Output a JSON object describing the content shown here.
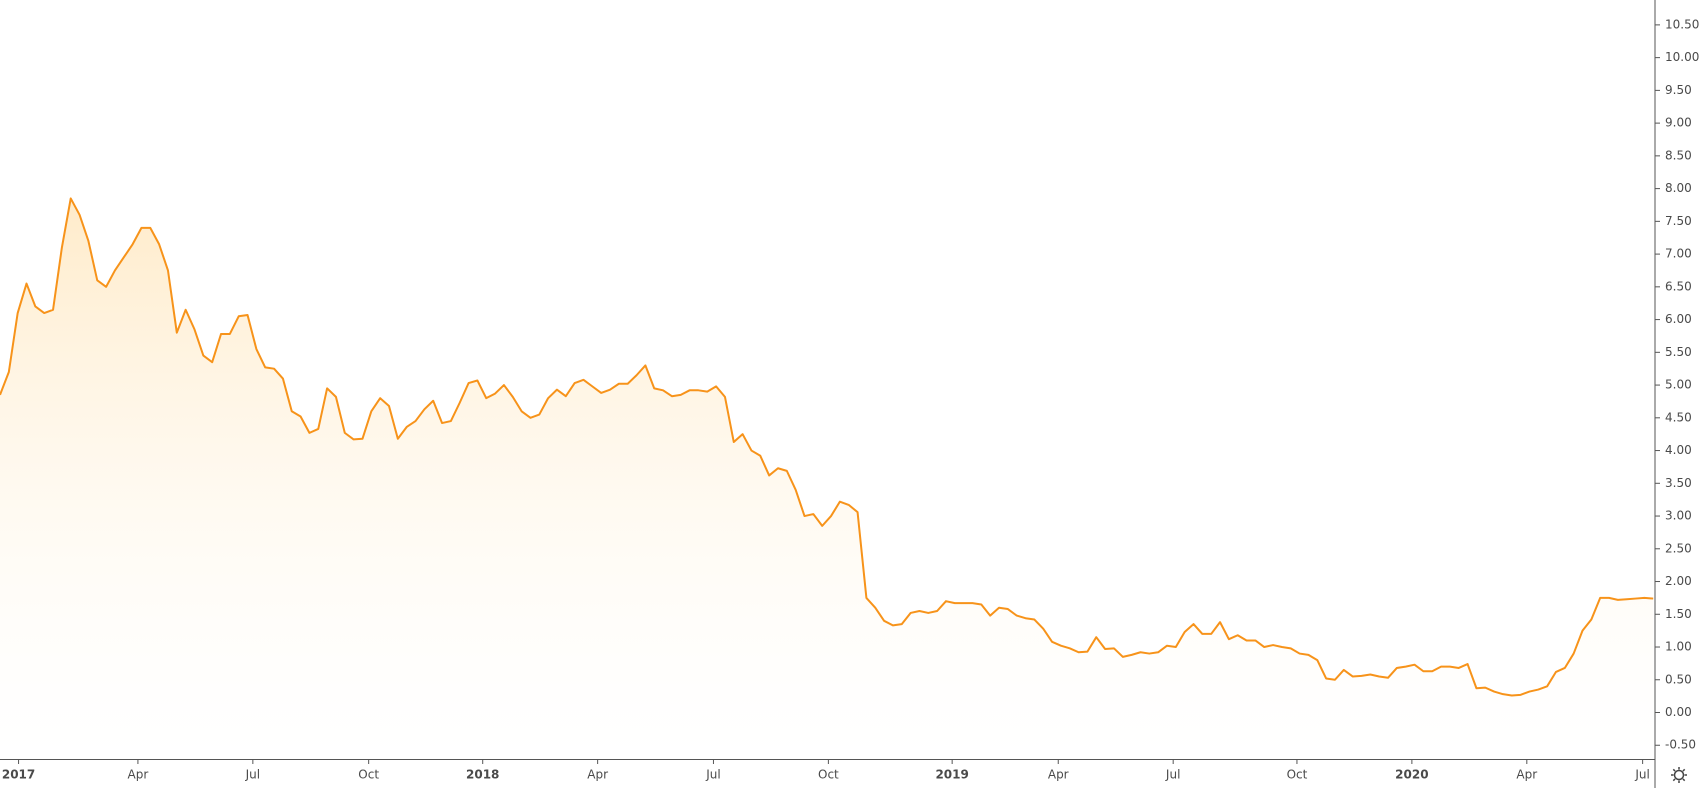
{
  "chart_data": {
    "type": "area",
    "color": "#f7931a",
    "grid": false,
    "xlim": [
      0,
      187.2
    ],
    "xticks": [
      {
        "value": 2.1,
        "label": "2017"
      },
      {
        "value": 15.6,
        "label": "Apr"
      },
      {
        "value": 28.6,
        "label": "Jul"
      },
      {
        "value": 41.7,
        "label": "Oct"
      },
      {
        "value": 54.6,
        "label": "2018"
      },
      {
        "value": 67.6,
        "label": "Apr"
      },
      {
        "value": 80.7,
        "label": "Jul"
      },
      {
        "value": 93.7,
        "label": "Oct"
      },
      {
        "value": 107.7,
        "label": "2019"
      },
      {
        "value": 119.7,
        "label": "Apr"
      },
      {
        "value": 132.7,
        "label": "Jul"
      },
      {
        "value": 146.7,
        "label": "Oct"
      },
      {
        "value": 159.7,
        "label": "2020"
      },
      {
        "value": 172.7,
        "label": "Apr"
      },
      {
        "value": 185.8,
        "label": "Jul"
      }
    ],
    "ylim": [
      -0.71,
      10.88
    ],
    "yticks": [
      {
        "value": -0.5,
        "label": "-0.50"
      },
      {
        "value": 0,
        "label": "0.00"
      },
      {
        "value": 0.5,
        "label": "0.50"
      },
      {
        "value": 1,
        "label": "1.00"
      },
      {
        "value": 1.5,
        "label": "1.50"
      },
      {
        "value": 2,
        "label": "2.00"
      },
      {
        "value": 2.5,
        "label": "2.50"
      },
      {
        "value": 3,
        "label": "3.00"
      },
      {
        "value": 3.5,
        "label": "3.50"
      },
      {
        "value": 4,
        "label": "4.00"
      },
      {
        "value": 4.5,
        "label": "4.50"
      },
      {
        "value": 5,
        "label": "5.00"
      },
      {
        "value": 5.5,
        "label": "5.50"
      },
      {
        "value": 6,
        "label": "6.00"
      },
      {
        "value": 6.5,
        "label": "6.50"
      },
      {
        "value": 7,
        "label": "7.00"
      },
      {
        "value": 7.5,
        "label": "7.50"
      },
      {
        "value": 8,
        "label": "8.00"
      },
      {
        "value": 8.5,
        "label": "8.50"
      },
      {
        "value": 9,
        "label": "9.00"
      },
      {
        "value": 9.5,
        "label": "9.50"
      },
      {
        "value": 10,
        "label": "10.00"
      },
      {
        "value": 10.5,
        "label": "10.50"
      }
    ],
    "values": [
      4.85,
      5.2,
      6.1,
      6.55,
      6.2,
      6.1,
      6.15,
      7.1,
      7.85,
      7.6,
      7.2,
      6.6,
      6.5,
      6.75,
      6.95,
      7.15,
      7.4,
      7.4,
      7.15,
      6.75,
      5.8,
      6.15,
      5.85,
      5.45,
      5.35,
      5.78,
      5.78,
      6.05,
      6.07,
      5.55,
      5.27,
      5.25,
      5.1,
      4.6,
      4.52,
      4.27,
      4.33,
      4.95,
      4.82,
      4.27,
      4.17,
      4.18,
      4.6,
      4.8,
      4.68,
      4.18,
      4.36,
      4.45,
      4.63,
      4.76,
      4.42,
      4.45,
      4.73,
      5.03,
      5.07,
      4.8,
      4.87,
      5.0,
      4.82,
      4.6,
      4.5,
      4.55,
      4.8,
      4.93,
      4.83,
      5.03,
      5.08,
      4.98,
      4.88,
      4.93,
      5.02,
      5.02,
      5.15,
      5.3,
      4.95,
      4.92,
      4.83,
      4.85,
      4.92,
      4.92,
      4.9,
      4.98,
      4.82,
      4.13,
      4.25,
      4.0,
      3.92,
      3.62,
      3.73,
      3.69,
      3.4,
      3.0,
      3.03,
      2.85,
      3.0,
      3.22,
      3.17,
      3.06,
      1.75,
      1.6,
      1.4,
      1.33,
      1.35,
      1.52,
      1.55,
      1.52,
      1.55,
      1.7,
      1.67,
      1.67,
      1.67,
      1.65,
      1.48,
      1.6,
      1.58,
      1.48,
      1.44,
      1.42,
      1.28,
      1.08,
      1.02,
      0.98,
      0.92,
      0.93,
      1.15,
      0.97,
      0.98,
      0.85,
      0.88,
      0.92,
      0.9,
      0.92,
      1.02,
      1.0,
      1.23,
      1.35,
      1.2,
      1.2,
      1.38,
      1.12,
      1.18,
      1.1,
      1.1,
      1.0,
      1.03,
      1.0,
      0.98,
      0.9,
      0.88,
      0.8,
      0.52,
      0.5,
      0.65,
      0.55,
      0.56,
      0.58,
      0.55,
      0.53,
      0.68,
      0.7,
      0.73,
      0.63,
      0.63,
      0.7,
      0.7,
      0.68,
      0.74,
      0.37,
      0.38,
      0.32,
      0.28,
      0.26,
      0.27,
      0.32,
      0.35,
      0.4,
      0.62,
      0.68,
      0.9,
      1.25,
      1.42,
      1.75,
      1.75,
      1.72,
      1.73,
      1.74,
      1.75,
      1.74
    ]
  }
}
